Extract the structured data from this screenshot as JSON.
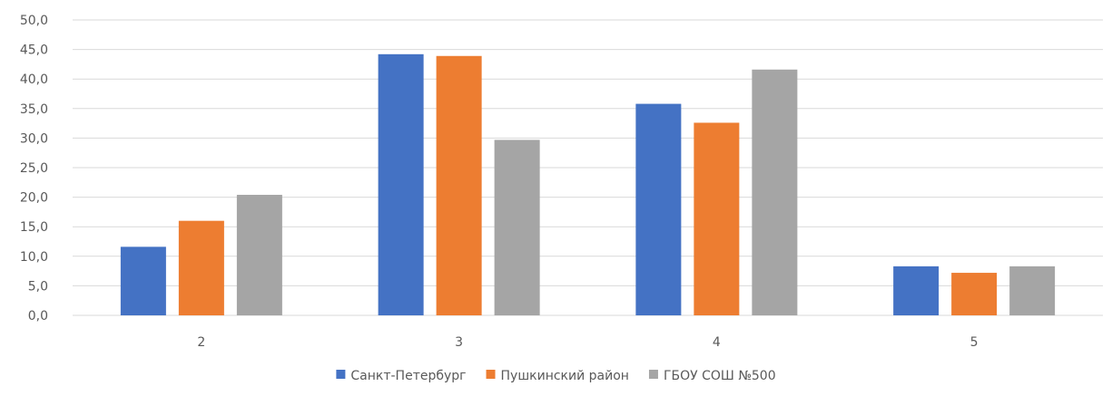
{
  "colors": {
    "series_1": "#4472C4",
    "series_2": "#ED7D31",
    "series_3": "#A5A5A5",
    "gridline": "#D9D9D9",
    "text": "#595959"
  },
  "chart_data": {
    "type": "bar",
    "title": "",
    "xlabel": "",
    "ylabel": "",
    "categories": [
      "2",
      "3",
      "4",
      "5"
    ],
    "series": [
      {
        "name": "Санкт-Петербург",
        "values": [
          11.6,
          44.2,
          35.8,
          8.3
        ]
      },
      {
        "name": "Пушкинский район",
        "values": [
          16.0,
          43.9,
          32.6,
          7.2
        ]
      },
      {
        "name": "ГБОУ СОШ №500",
        "values": [
          20.4,
          29.7,
          41.6,
          8.3
        ]
      }
    ],
    "ylim": [
      0,
      50
    ],
    "yticks": [
      "0,0",
      "5,0",
      "10,0",
      "15,0",
      "20,0",
      "25,0",
      "30,0",
      "35,0",
      "40,0",
      "45,0",
      "50,0"
    ],
    "grid": true,
    "legend_position": "bottom"
  }
}
